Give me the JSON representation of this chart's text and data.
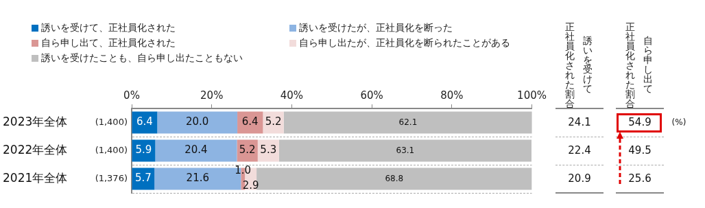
{
  "chart_data": {
    "type": "bar",
    "orientation": "horizontal",
    "stacked": true,
    "categories": [
      "2023年全体",
      "2022年全体",
      "2021年全体"
    ],
    "series": [
      {
        "name": "誘いを受けて、正社員化された",
        "color": "#0070c0",
        "values": [
          6.4,
          5.9,
          5.7
        ],
        "value_labels": [
          "6.4",
          "5.9",
          "5.7"
        ]
      },
      {
        "name": "誘いを受けたが、正社員化を断った",
        "color": "#8db4e2",
        "values": [
          20.0,
          20.4,
          21.6
        ],
        "value_labels": [
          "20.0",
          "20.4",
          "21.6"
        ]
      },
      {
        "name": "自ら申し出て、正社員化された",
        "color": "#da9694",
        "values": [
          6.4,
          5.2,
          1.0
        ],
        "value_labels": [
          "6.4",
          "5.2",
          "1.0"
        ]
      },
      {
        "name": "自ら申し出たが、正社員化を断られたことがある",
        "color": "#f2dcdb",
        "values": [
          5.2,
          5.3,
          2.9
        ],
        "value_labels": [
          "5.2",
          "5.3",
          "2.9"
        ]
      },
      {
        "name": "誘いを受けたことも、自ら申し出たこともない",
        "color": "#bfbfbf",
        "values": [
          62.1,
          63.1,
          68.8
        ],
        "value_labels": [
          "62.1",
          "63.1",
          "68.8"
        ]
      }
    ],
    "xlim": [
      0,
      100
    ],
    "xticks": [
      {
        "value": 0,
        "label": "0%"
      },
      {
        "value": 20,
        "label": "20%"
      },
      {
        "value": 40,
        "label": "40%"
      },
      {
        "value": 60,
        "label": "60%"
      },
      {
        "value": 80,
        "label": "80%"
      },
      {
        "value": 100,
        "label": "100%"
      }
    ],
    "legend": "top",
    "grid": "y",
    "annotations": [
      "(1,400)",
      "(1,400)",
      "(1,376)",
      "正社員化された割合",
      "誘いを受けて",
      "正社員化された割合",
      "自ら申し出て",
      "24.1",
      "22.4",
      "20.9",
      "54.9",
      "49.5",
      "25.6",
      "(%)"
    ]
  }
}
